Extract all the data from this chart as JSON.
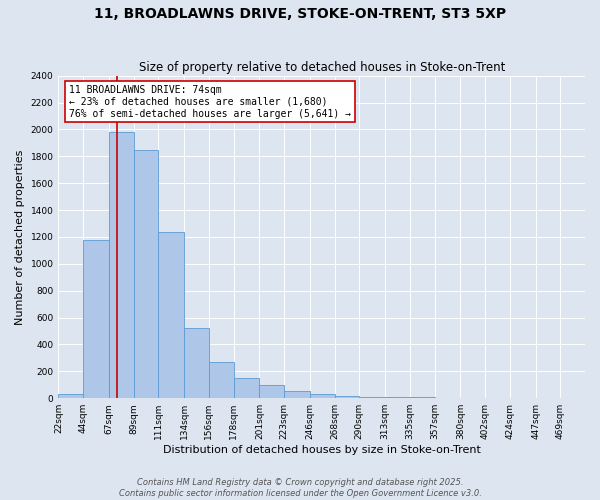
{
  "title1": "11, BROADLAWNS DRIVE, STOKE-ON-TRENT, ST3 5XP",
  "title2": "Size of property relative to detached houses in Stoke-on-Trent",
  "xlabel": "Distribution of detached houses by size in Stoke-on-Trent",
  "ylabel": "Number of detached properties",
  "bin_labels": [
    "22sqm",
    "44sqm",
    "67sqm",
    "89sqm",
    "111sqm",
    "134sqm",
    "156sqm",
    "178sqm",
    "201sqm",
    "223sqm",
    "246sqm",
    "268sqm",
    "290sqm",
    "313sqm",
    "335sqm",
    "357sqm",
    "380sqm",
    "402sqm",
    "424sqm",
    "447sqm",
    "469sqm"
  ],
  "bin_edges": [
    22,
    44,
    67,
    89,
    111,
    134,
    156,
    178,
    201,
    223,
    246,
    268,
    290,
    313,
    335,
    357,
    380,
    402,
    424,
    447,
    469,
    491
  ],
  "bar_heights": [
    30,
    1180,
    1980,
    1850,
    1240,
    520,
    270,
    150,
    100,
    50,
    35,
    20,
    10,
    10,
    8,
    5,
    5,
    5,
    5,
    5,
    5
  ],
  "bar_color": "#aec6e8",
  "bar_edge_color": "#5b9bd5",
  "vline_x": 74,
  "vline_color": "#cc0000",
  "annotation_box_text": "11 BROADLAWNS DRIVE: 74sqm\n← 23% of detached houses are smaller (1,680)\n76% of semi-detached houses are larger (5,641) →",
  "annotation_box_color": "#cc0000",
  "annotation_box_bg": "#ffffff",
  "ylim": [
    0,
    2400
  ],
  "yticks": [
    0,
    200,
    400,
    600,
    800,
    1000,
    1200,
    1400,
    1600,
    1800,
    2000,
    2200,
    2400
  ],
  "background_color": "#dde6f0",
  "plot_bg_color": "#dde6f0",
  "footer_line1": "Contains HM Land Registry data © Crown copyright and database right 2025.",
  "footer_line2": "Contains public sector information licensed under the Open Government Licence v3.0.",
  "title_fontsize": 10,
  "subtitle_fontsize": 8.5,
  "axis_label_fontsize": 8,
  "tick_fontsize": 6.5,
  "annotation_fontsize": 7,
  "footer_fontsize": 6
}
